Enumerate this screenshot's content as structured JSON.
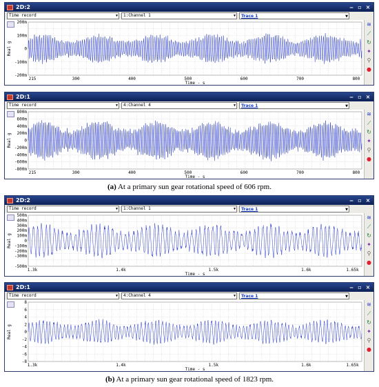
{
  "panels": [
    {
      "id": "a1",
      "window_title": "2D:2",
      "record_type": "Time record",
      "channel": "1:Channel 1",
      "trace": "Trace 1",
      "y_label": "Real g",
      "x_label": "Time - s",
      "y_ticks": [
        "200m",
        "100m",
        "0",
        "-100m",
        "-200m"
      ],
      "x_ticks": [
        "215",
        "300",
        "400",
        "500",
        "600",
        "700",
        "800"
      ],
      "chart_data": {
        "type": "line",
        "xlabel": "Time - s",
        "ylabel": "Real g",
        "xlim": [
          215,
          810
        ],
        "ylim": [
          -0.2,
          0.2
        ],
        "series": [
          {
            "amplitude": 0.1,
            "cycles": 180
          }
        ]
      }
    },
    {
      "id": "a2",
      "window_title": "2D:1",
      "record_type": "Time record",
      "channel": "4:Channel 4",
      "trace": "Trace 1",
      "y_label": "Real g",
      "x_label": "Time - s",
      "y_ticks": [
        "800m",
        "600m",
        "400m",
        "200m",
        "0",
        "-200m",
        "-400m",
        "-600m",
        "-800m"
      ],
      "x_ticks": [
        "215",
        "300",
        "400",
        "500",
        "600",
        "700",
        "800"
      ],
      "chart_data": {
        "type": "line",
        "xlabel": "Time - s",
        "ylabel": "Real g",
        "xlim": [
          215,
          810
        ],
        "ylim": [
          -0.8,
          0.8
        ],
        "series": [
          {
            "amplitude": 0.5,
            "cycles": 200
          }
        ]
      }
    },
    {
      "id": "b1",
      "window_title": "2D:2",
      "record_type": "Time record",
      "channel": "1:Channel 1",
      "trace": "Trace 1",
      "y_label": "Real g",
      "x_label": "Time - s",
      "y_ticks": [
        "500m",
        "400m",
        "300m",
        "200m",
        "100m",
        "0",
        "-100m",
        "-200m",
        "-300m",
        "-500m"
      ],
      "x_ticks": [
        "1.3k",
        "1.4k",
        "1.5k",
        "1.6k",
        "1.65k"
      ],
      "chart_data": {
        "type": "line",
        "xlabel": "Time - s",
        "ylabel": "Real g",
        "xlim": [
          1300,
          1660
        ],
        "ylim": [
          -0.5,
          0.5
        ],
        "series": [
          {
            "amplitude": 0.3,
            "cycles": 80
          }
        ]
      }
    },
    {
      "id": "b2",
      "window_title": "2D:1",
      "record_type": "Time record",
      "channel": "4:Channel 4",
      "trace": "Trace 1",
      "y_label": "Real g",
      "x_label": "Time - s",
      "y_ticks": [
        "8",
        "6",
        "4",
        "2",
        "0",
        "-2",
        "-4",
        "-6",
        "-8"
      ],
      "x_ticks": [
        "1.3k",
        "1.4k",
        "1.5k",
        "1.6k",
        "1.65k"
      ],
      "chart_data": {
        "type": "line",
        "xlabel": "Time - s",
        "ylabel": "Real g",
        "xlim": [
          1300,
          1660
        ],
        "ylim": [
          -8,
          8
        ],
        "series": [
          {
            "amplitude": 3,
            "cycles": 95
          }
        ]
      }
    }
  ],
  "captions": {
    "a_label": "(a)",
    "a_text": " At a primary sun gear rotational speed of 606 rpm.",
    "b_label": "(b)",
    "b_text": " At a primary sun gear rotational speed of 1823 rpm."
  },
  "colors": {
    "trace": "#2a3cc8",
    "grid": "#c8c8c8"
  }
}
